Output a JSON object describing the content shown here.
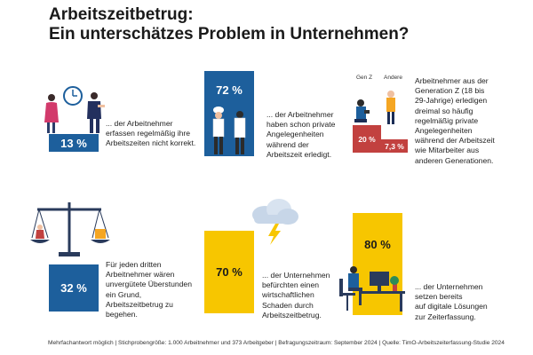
{
  "title": {
    "line1": "Arbeitszeitbetrug:",
    "line2": "Ein unterschätzes Problem in Unternehmen?"
  },
  "chart_data": [
    {
      "type": "bar",
      "categories": [
        "13 %"
      ],
      "values": [
        13
      ],
      "data_labels": [
        "13 %"
      ],
      "description": "... der Arbeitnehmer erfassen regelmäßig ihre Arbeitszeiten nicht korrekt."
    },
    {
      "type": "bar",
      "categories": [
        "72 %"
      ],
      "values": [
        72
      ],
      "data_labels": [
        "72 %"
      ],
      "description": "... der Arbeitnehmer haben schon private Angelegenheiten während der Arbeitszeit erledigt."
    },
    {
      "type": "bar",
      "categories": [
        "Gen Z",
        "Andere"
      ],
      "values": [
        20,
        7.3
      ],
      "data_labels": [
        "20 %",
        "7,3 %"
      ],
      "description": "Arbeitnehmer aus der Generation Z (18 bis 29-Jahrige) erledigen dreimal so häufig regelmäßig private Angelegenheiten während der Arbeitszeit wie Mitarbeiter aus anderen Generationen."
    },
    {
      "type": "bar",
      "categories": [
        "32 %"
      ],
      "values": [
        32
      ],
      "data_labels": [
        "32 %"
      ],
      "description": "Für jeden dritten Arbeitnehmer wären unvergütete Überstunden ein Grund, Arbeitszeitbetrug zu begehen."
    },
    {
      "type": "bar",
      "categories": [
        "70 %"
      ],
      "values": [
        70
      ],
      "data_labels": [
        "70 %"
      ],
      "description": "... der Unternehmen befürchten einen wirtschaftlichen Schaden durch Arbeitszeitbetrug."
    },
    {
      "type": "bar",
      "categories": [
        "80 %"
      ],
      "values": [
        80
      ],
      "data_labels": [
        "80 %"
      ],
      "description": "... der Unternehmen setzen bereits auf digitale Lösungen zur Zeiterfassung."
    }
  ],
  "texts": {
    "t1": [
      "... der Arbeitnehmer",
      "erfassen regelmäßig ihre",
      "Arbeitszeiten nicht korrekt."
    ],
    "t2": [
      "... der Arbeitnehmer",
      "haben schon private",
      "Angelegenheiten",
      "während der",
      "Arbeitszeit erledigt."
    ],
    "t3": [
      "Arbeitnehmer aus der",
      "Generation Z (18 bis",
      "29-Jahrige) erledigen",
      "dreimal so häufig",
      "regelmäßig private",
      "Angelegenheiten",
      "während der Arbeitszeit",
      "wie Mitarbeiter aus",
      "anderen Generationen."
    ],
    "t4": [
      "Für jeden dritten",
      "Arbeitnehmer wären",
      "unvergütete Überstunden",
      "ein Grund,",
      "Arbeitszeitbetrug zu",
      "begehen."
    ],
    "t5": [
      "... der Unternehmen",
      "befürchten einen",
      "wirtschaftlichen",
      "Schaden durch",
      "Arbeitszeitbetrug."
    ],
    "t6": [
      "... der Unternehmen",
      "setzen bereits",
      "auf digitale Lösungen",
      "zur Zeiterfassung."
    ]
  },
  "footer": "Mehrfachantwort möglich | Stichprobengröße: 1.000 Arbeitnehmer und 373 Arbeitgeber | Befragungszeitraum: September 2024 | Quelle: TimO-Arbeitszeiterfassung-Studie 2024",
  "colors": {
    "blue": "#1d5f9c",
    "yellow": "#f7c600",
    "red": "#c2413f"
  }
}
